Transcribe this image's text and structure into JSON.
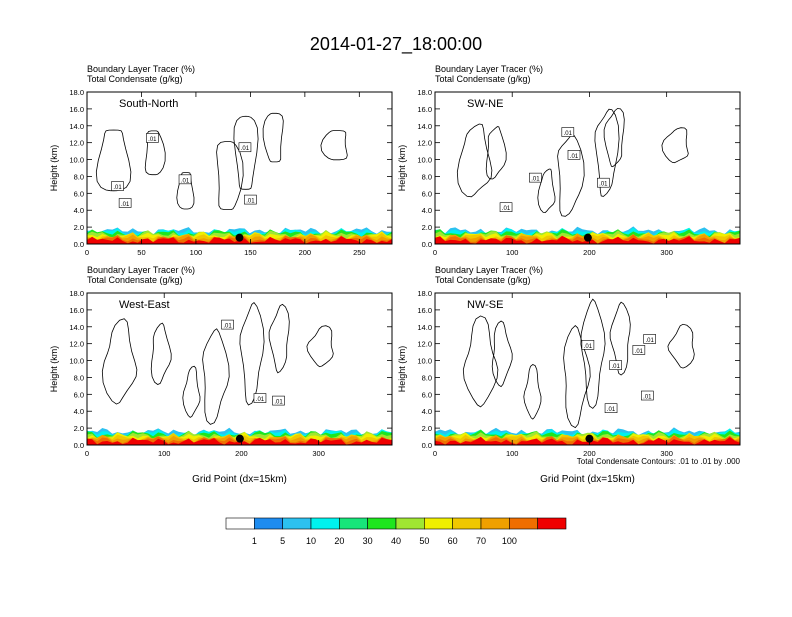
{
  "title": "2014-01-27_18:00:00",
  "colorbar": {
    "labels": [
      "1",
      "5",
      "10",
      "20",
      "30",
      "40",
      "50",
      "60",
      "70",
      "100"
    ],
    "colors": [
      "#ffffff",
      "#1e8cf0",
      "#2cc1f0",
      "#00f2ee",
      "#17e57a",
      "#1ee61e",
      "#a0e632",
      "#f0f000",
      "#f0c800",
      "#f0a000",
      "#f06e00",
      "#f00000"
    ]
  },
  "contour_note": "Total Condensate Contours: .01 to .01 by .000",
  "contour_label": ".01",
  "chart_data": [
    {
      "type": "area",
      "label": "South-North",
      "subtitle1": "Boundary Layer Tracer   (%)",
      "subtitle2": "Total Condensate   (g/kg)",
      "ylabel": "Height (km)",
      "xlabel": "",
      "xlim": [
        0,
        280
      ],
      "ylim": [
        0,
        18
      ],
      "xticks": [
        "0",
        "50",
        "100",
        "150",
        "200",
        "250"
      ],
      "yticks": [
        "0.0",
        "2.0",
        "4.0",
        "6.0",
        "8.0",
        "10.0",
        "12.0",
        "14.0",
        "16.0",
        "18.0"
      ],
      "marker_x": 140,
      "contour_labels_xy": [
        [
          60,
          12.5
        ],
        [
          90,
          7.6
        ],
        [
          145,
          11.4
        ],
        [
          150,
          5.2
        ],
        [
          28,
          6.8
        ],
        [
          35,
          4.8
        ]
      ]
    },
    {
      "type": "area",
      "label": "SW-NE",
      "subtitle1": "Boundary Layer Tracer   (%)",
      "subtitle2": "Total Condensate   (g/kg)",
      "ylabel": "Height (km)",
      "xlabel": "",
      "xlim": [
        0,
        395
      ],
      "ylim": [
        0,
        18
      ],
      "xticks": [
        "0",
        "100",
        "200",
        "300"
      ],
      "yticks": [
        "0.0",
        "2.0",
        "4.0",
        "6.0",
        "8.0",
        "10.0",
        "12.0",
        "14.0",
        "16.0",
        "18.0"
      ],
      "marker_x": 198,
      "contour_labels_xy": [
        [
          172,
          13.2
        ],
        [
          180,
          10.5
        ],
        [
          130,
          7.8
        ],
        [
          218,
          7.2
        ],
        [
          92,
          4.3
        ]
      ]
    },
    {
      "type": "area",
      "label": "West-East",
      "subtitle1": "Boundary Layer Tracer   (%)",
      "subtitle2": "Total Condensate   (g/kg)",
      "ylabel": "Height (km)",
      "xlabel": "Grid Point (dx=15km)",
      "xlim": [
        0,
        395
      ],
      "ylim": [
        0,
        18
      ],
      "xticks": [
        "0",
        "100",
        "200",
        "300"
      ],
      "yticks": [
        "0.0",
        "2.0",
        "4.0",
        "6.0",
        "8.0",
        "10.0",
        "12.0",
        "14.0",
        "16.0",
        "18.0"
      ],
      "marker_x": 198,
      "contour_labels_xy": [
        [
          182,
          14.2
        ],
        [
          224,
          5.5
        ],
        [
          248,
          5.2
        ]
      ]
    },
    {
      "type": "area",
      "label": "NW-SE",
      "subtitle1": "Boundary Layer Tracer   (%)",
      "subtitle2": "Total Condensate   (g/kg)",
      "ylabel": "Height (km)",
      "xlabel": "Grid Point (dx=15km)",
      "xlim": [
        0,
        395
      ],
      "ylim": [
        0,
        18
      ],
      "xticks": [
        "0",
        "100",
        "200",
        "300"
      ],
      "yticks": [
        "0.0",
        "2.0",
        "4.0",
        "6.0",
        "8.0",
        "10.0",
        "12.0",
        "14.0",
        "16.0",
        "18.0"
      ],
      "marker_x": 200,
      "contour_labels_xy": [
        [
          198,
          11.8
        ],
        [
          278,
          12.5
        ],
        [
          275,
          5.8
        ],
        [
          234,
          9.4
        ],
        [
          264,
          11.2
        ],
        [
          228,
          4.3
        ]
      ]
    }
  ]
}
